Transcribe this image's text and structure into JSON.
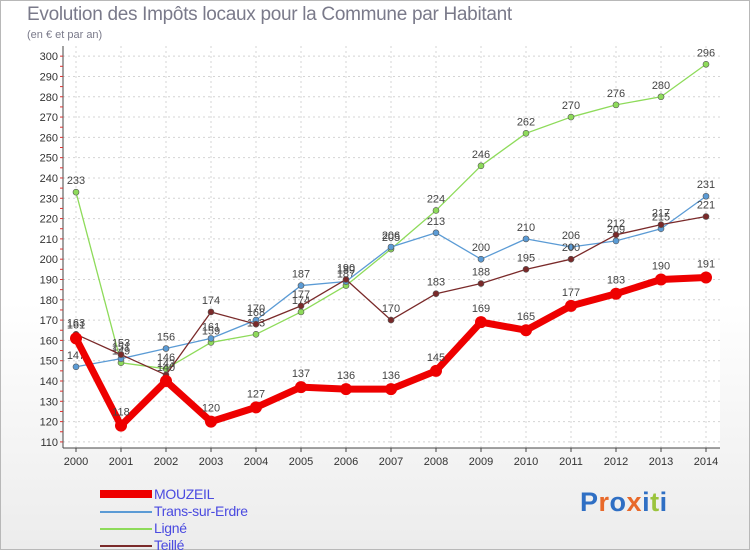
{
  "chart_data": {
    "type": "line",
    "title": "Evolution des Impôts locaux pour la Commune par Habitant",
    "subtitle": "(en € et par an)",
    "x": [
      "2000",
      "2001",
      "2002",
      "2003",
      "2004",
      "2005",
      "2006",
      "2007",
      "2008",
      "2009",
      "2010",
      "2011",
      "2012",
      "2013",
      "2014"
    ],
    "yticks": [
      110,
      120,
      130,
      140,
      150,
      160,
      170,
      180,
      190,
      200,
      210,
      220,
      230,
      240,
      250,
      260,
      270,
      280,
      290,
      300
    ],
    "ylim": [
      107,
      305
    ],
    "grid": true,
    "legend_position": "bottom-left",
    "series": [
      {
        "name": "MOUZEIL",
        "color": "#ee0000",
        "values": [
          161,
          118,
          140,
          120,
          127,
          137,
          136,
          136,
          145,
          169,
          165,
          177,
          183,
          190,
          191
        ]
      },
      {
        "name": "Trans-sur-Erdre",
        "color": "#5b9bd5",
        "values": [
          147,
          151,
          156,
          161,
          170,
          187,
          189,
          206,
          213,
          200,
          210,
          206,
          209,
          215,
          231
        ]
      },
      {
        "name": "Ligné",
        "color": "#8edb5a",
        "values": [
          233,
          149,
          146,
          159,
          163,
          174,
          187,
          205,
          224,
          246,
          262,
          270,
          276,
          280,
          296
        ]
      },
      {
        "name": "Teillé",
        "color": "#7a2a2a",
        "values": [
          163,
          153,
          143,
          174,
          168,
          177,
          190,
          170,
          183,
          188,
          195,
          200,
          212,
          217,
          221
        ]
      }
    ]
  },
  "logo": {
    "text": "Proxiti",
    "letters": [
      "P",
      "r",
      "o",
      "x",
      "i",
      "t",
      "i"
    ],
    "colors": [
      "#2f6fc4",
      "#e8692a",
      "#2f6fc4",
      "#e8692a",
      "#2f6fc4",
      "#9bc43c",
      "#2f6fc4"
    ]
  }
}
